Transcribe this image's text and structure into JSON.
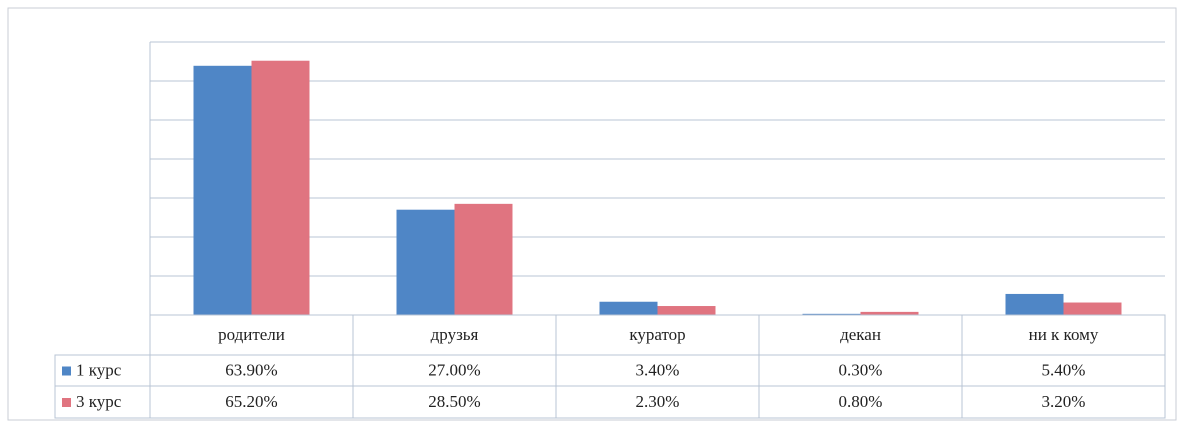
{
  "chart_data": {
    "type": "bar",
    "categories": [
      "родители",
      "друзья",
      "куратор",
      "декан",
      "ни к кому"
    ],
    "series": [
      {
        "name": "1 курс",
        "color": "#4f86c6",
        "values": [
          63.9,
          27.0,
          3.4,
          0.3,
          5.4
        ],
        "value_labels": [
          "63.90%",
          "27.00%",
          "3.40%",
          "0.30%",
          "5.40%"
        ]
      },
      {
        "name": "3 курс",
        "color": "#e07480",
        "values": [
          65.2,
          28.5,
          2.3,
          0.8,
          3.2
        ],
        "value_labels": [
          "65.20%",
          "28.50%",
          "2.30%",
          "0.80%",
          "3.20%"
        ]
      }
    ],
    "ylim": [
      0,
      70
    ],
    "yticks": [
      0,
      10,
      20,
      30,
      40,
      50,
      60,
      70
    ],
    "grid": true,
    "legend": "table"
  }
}
